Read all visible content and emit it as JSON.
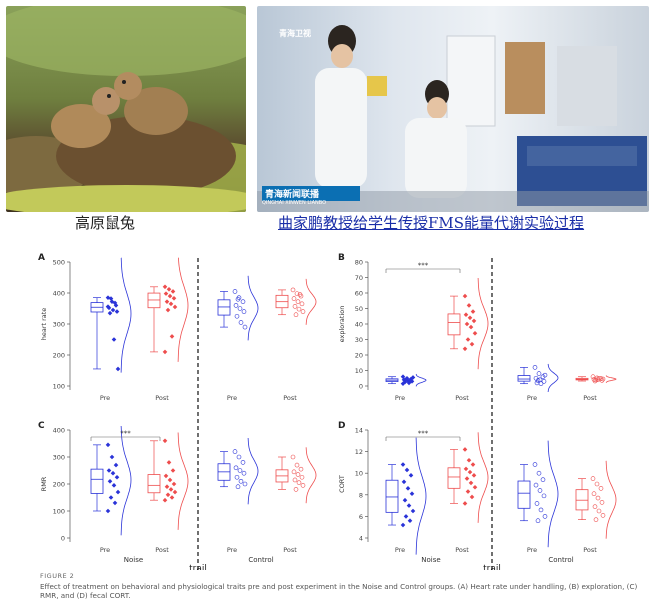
{
  "captions": {
    "left": "高原鼠兔",
    "right": "曲家鹏教授给学生传授FMS能量代谢实验过程"
  },
  "tv_logo": "青海卫视",
  "tv_banner": "青海新闻联播",
  "tv_banner_pinyin": "QINGHAI XINWEN LIANBO",
  "figure": {
    "label": "FIGURE 2",
    "caption": "Effect of treatment on behavioral and physiological traits pre and post experiment in the Noise and Control groups. (A) Heart rate under handling, (B) exploration, (C) RMR, and (D) fecal CORT.",
    "group_noise": "Noise",
    "group_control": "Control",
    "xlabel": "trail",
    "significance": "***"
  },
  "colors": {
    "pre": "#2a33d8",
    "post": "#ee4d4d",
    "caption_link": "#1a2ea8"
  },
  "chart_data": [
    {
      "type": "scatter",
      "panel": "A",
      "ylabel": "heart rate",
      "ylim": [
        100,
        500
      ],
      "yticks": [
        100,
        200,
        300,
        400,
        500
      ],
      "categories": [
        "Pre",
        "Post",
        "Pre",
        "Post"
      ],
      "groups": [
        "Noise",
        "Noise",
        "Control",
        "Control"
      ],
      "significance": null,
      "series": [
        {
          "values": [
            385,
            372,
            360,
            352,
            345,
            340,
            335,
            250,
            155,
            382,
            368,
            356
          ]
        },
        {
          "values": [
            420,
            412,
            405,
            398,
            390,
            383,
            372,
            365,
            355,
            345,
            260,
            210
          ]
        },
        {
          "values": [
            405,
            385,
            372,
            360,
            350,
            340,
            325,
            305,
            290,
            380
          ]
        },
        {
          "values": [
            410,
            398,
            390,
            382,
            372,
            365,
            357,
            348,
            340,
            330,
            395
          ]
        }
      ]
    },
    {
      "type": "scatter",
      "panel": "B",
      "ylabel": "exploration",
      "ylim": [
        0,
        80
      ],
      "yticks": [
        0,
        10,
        20,
        30,
        40,
        50,
        60,
        70,
        80
      ],
      "categories": [
        "Pre",
        "Post",
        "Pre",
        "Post"
      ],
      "groups": [
        "Noise",
        "Noise",
        "Control",
        "Control"
      ],
      "significance": "***",
      "series": [
        {
          "values": [
            6,
            5,
            4.5,
            4,
            3.5,
            3,
            2.5,
            2,
            5.5,
            4.2,
            3.2,
            1.5
          ]
        },
        {
          "values": [
            58,
            52,
            48,
            46,
            44,
            42,
            40,
            38,
            34,
            30,
            27,
            24
          ]
        },
        {
          "values": [
            12,
            8,
            6,
            5,
            4,
            3,
            2,
            1.5,
            7,
            3.5
          ]
        },
        {
          "values": [
            6,
            5.2,
            4.8,
            4.3,
            4,
            3.6,
            3.2,
            5,
            4.5,
            3.9
          ]
        }
      ]
    },
    {
      "type": "scatter",
      "panel": "C",
      "ylabel": "RMR",
      "ylim": [
        0,
        400
      ],
      "yticks": [
        0,
        100,
        200,
        300,
        400
      ],
      "categories": [
        "Pre",
        "Post",
        "Pre",
        "Post"
      ],
      "groups": [
        "Noise",
        "Noise",
        "Control",
        "Control"
      ],
      "significance": "***",
      "series": [
        {
          "values": [
            345,
            300,
            270,
            250,
            240,
            225,
            210,
            195,
            170,
            150,
            130,
            100
          ]
        },
        {
          "values": [
            360,
            280,
            250,
            230,
            215,
            200,
            190,
            180,
            170,
            160,
            150,
            140
          ]
        },
        {
          "values": [
            320,
            300,
            280,
            260,
            250,
            240,
            225,
            210,
            200,
            190
          ]
        },
        {
          "values": [
            300,
            270,
            255,
            245,
            235,
            225,
            215,
            205,
            195,
            180
          ]
        }
      ]
    },
    {
      "type": "scatter",
      "panel": "D",
      "ylabel": "CORT",
      "ylim": [
        4,
        14
      ],
      "yticks": [
        4,
        6,
        8,
        10,
        12,
        14
      ],
      "categories": [
        "Pre",
        "Post",
        "Pre",
        "Post"
      ],
      "groups": [
        "Noise",
        "Noise",
        "Control",
        "Control"
      ],
      "significance": "***",
      "series": [
        {
          "values": [
            10.8,
            10.3,
            9.8,
            9.2,
            8.6,
            8.1,
            7.5,
            7,
            6.5,
            6,
            5.6,
            5.2
          ]
        },
        {
          "values": [
            12.2,
            11.2,
            10.8,
            10.4,
            10.1,
            9.8,
            9.5,
            9.1,
            8.7,
            8.3,
            7.8,
            7.2
          ]
        },
        {
          "values": [
            10.8,
            10,
            9.4,
            8.9,
            8.4,
            7.9,
            7.2,
            6.6,
            6,
            5.6
          ]
        },
        {
          "values": [
            9.5,
            9,
            8.6,
            8.1,
            7.7,
            7.3,
            6.9,
            6.5,
            6.1,
            5.7
          ]
        }
      ]
    }
  ]
}
